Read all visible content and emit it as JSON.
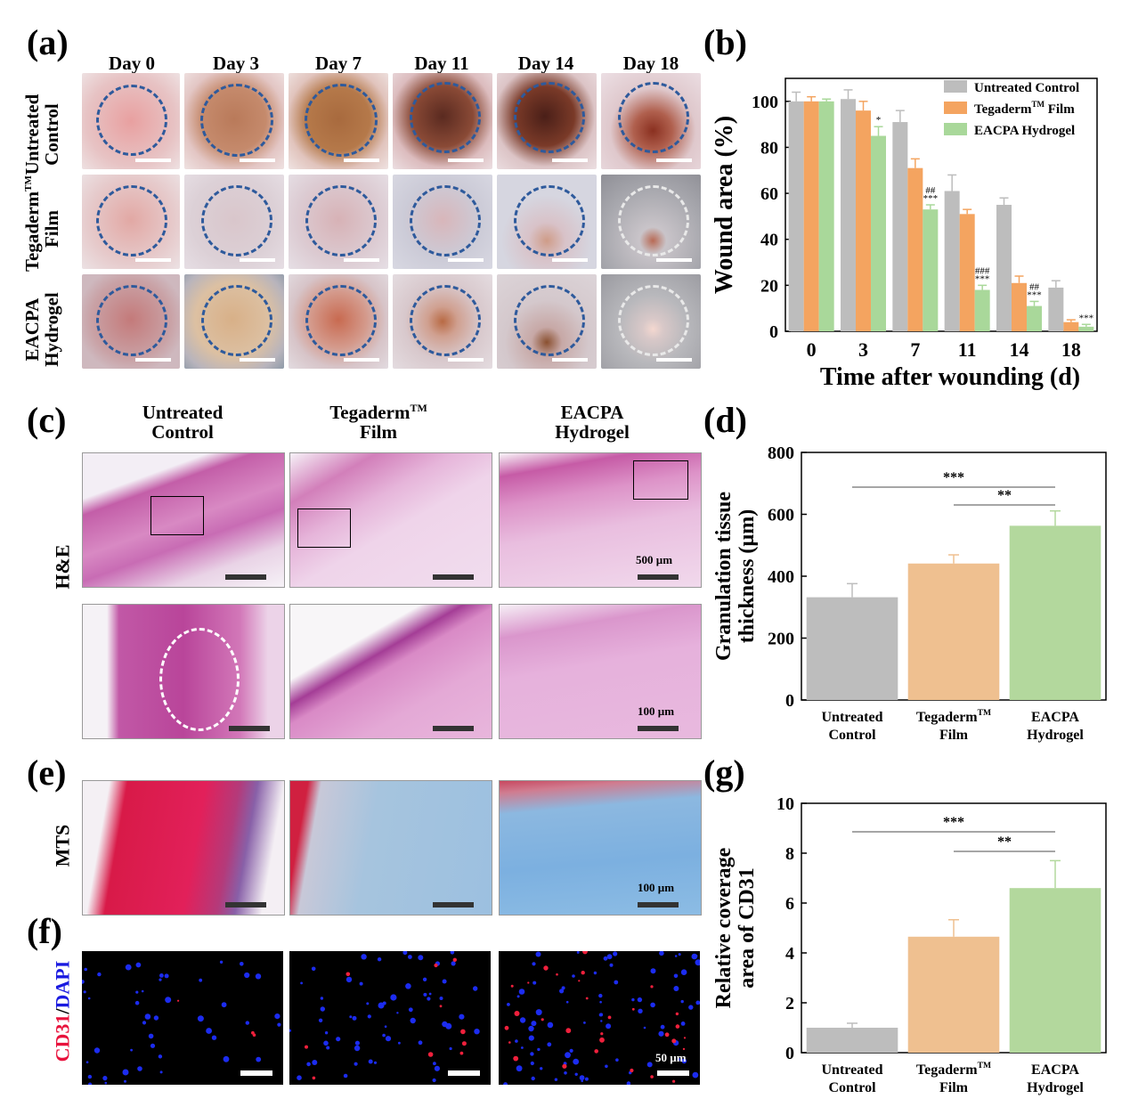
{
  "panel_labels": [
    "(a)",
    "(b)",
    "(c)",
    "(d)",
    "(e)",
    "(f)",
    "(g)"
  ],
  "panel_a": {
    "days": [
      "Day 0",
      "Day 3",
      "Day 7",
      "Day 11",
      "Day 14",
      "Day 18"
    ],
    "rows": [
      {
        "line1": "Untreated",
        "line2": "Control",
        "sup": ""
      },
      {
        "line1": "Tegaderm",
        "line2": "Film",
        "sup": "TM"
      },
      {
        "line1": "EACPA",
        "line2": "Hydrogel",
        "sup": ""
      }
    ]
  },
  "panel_c": {
    "columns": [
      {
        "line1": "Untreated",
        "line2": "Control",
        "sup": ""
      },
      {
        "line1": "Tegaderm",
        "line2": "Film",
        "sup": "TM"
      },
      {
        "line1": "EACPA",
        "line2": "Hydrogel",
        "sup": ""
      }
    ],
    "row_label": "H&E",
    "scale_top": "500 µm",
    "scale_bottom": "100 µm"
  },
  "panel_e": {
    "row_label": "MTS",
    "scale": "100 µm"
  },
  "panel_f": {
    "row_label_red": "CD31",
    "row_label_sep": "/",
    "row_label_blue": "DAPI",
    "scale": "50 µm"
  },
  "colors": {
    "control": "#bdbdbd",
    "tegaderm": "#f4a460",
    "eacpa": "#a9d89a",
    "tegaderm_light": "#efc090",
    "eacpa_light": "#b3d89d",
    "dash_blue": "#2e5a9c"
  },
  "chart_data": [
    {
      "id": "b",
      "type": "bar",
      "categories": [
        "0",
        "3",
        "7",
        "11",
        "14",
        "18"
      ],
      "xlabel": "Time after wounding (d)",
      "ylabel": "Wound area (%)",
      "ylim": [
        0,
        110
      ],
      "yticks": [
        0,
        20,
        40,
        60,
        80,
        100
      ],
      "legend_position": "top-right",
      "series": [
        {
          "name": "Untreated Control",
          "name_sup": "",
          "values": [
            100,
            101,
            91,
            61,
            55,
            19
          ],
          "errors": [
            4,
            4,
            5,
            7,
            3,
            3
          ]
        },
        {
          "name": "Tegaderm",
          "name_sup": "TM",
          "name_suffix": " Film",
          "values": [
            100,
            96,
            71,
            51,
            21,
            4
          ],
          "errors": [
            2,
            4,
            4,
            2,
            3,
            1
          ]
        },
        {
          "name": "EACPA Hydrogel",
          "name_sup": "",
          "values": [
            100,
            85,
            53,
            18,
            11,
            2
          ],
          "errors": [
            1,
            4,
            2,
            2,
            2,
            1
          ]
        }
      ],
      "annotations": [
        {
          "category": "3",
          "series": 2,
          "lines": [
            "*"
          ]
        },
        {
          "category": "7",
          "series": 2,
          "lines": [
            "##",
            "***"
          ]
        },
        {
          "category": "11",
          "series": 2,
          "lines": [
            "###",
            "***"
          ]
        },
        {
          "category": "14",
          "series": 2,
          "lines": [
            "##",
            "***"
          ]
        },
        {
          "category": "18",
          "series": 2,
          "lines": [
            "***"
          ]
        }
      ]
    },
    {
      "id": "d",
      "type": "bar",
      "categories": [
        {
          "line1": "Untreated",
          "line2": "Control",
          "sup": ""
        },
        {
          "line1": "Tegaderm",
          "line2": "Film",
          "sup": "TM"
        },
        {
          "line1": "EACPA",
          "line2": "Hydrogel",
          "sup": ""
        }
      ],
      "values": [
        332,
        441,
        563
      ],
      "errors": [
        44,
        28,
        48
      ],
      "ylabel_line1": "Granulation tissue",
      "ylabel_line2": "thickness (µm)",
      "ylim": [
        0,
        800
      ],
      "yticks": [
        0,
        200,
        400,
        600,
        800
      ],
      "significance": [
        {
          "from": 0,
          "to": 2,
          "label": "***"
        },
        {
          "from": 1,
          "to": 2,
          "label": "**"
        }
      ]
    },
    {
      "id": "g",
      "type": "bar",
      "categories": [
        {
          "line1": "Untreated",
          "line2": "Control",
          "sup": ""
        },
        {
          "line1": "Tegaderm",
          "line2": "Film",
          "sup": "TM"
        },
        {
          "line1": "EACPA",
          "line2": "Hydrogel",
          "sup": ""
        }
      ],
      "values": [
        1.0,
        4.65,
        6.6
      ],
      "errors": [
        0.18,
        0.68,
        1.1
      ],
      "ylabel_line1": "Relative coverage",
      "ylabel_line2": "area of CD31",
      "ylim": [
        0,
        10
      ],
      "yticks": [
        0,
        2,
        4,
        6,
        8,
        10
      ],
      "significance": [
        {
          "from": 0,
          "to": 2,
          "label": "***"
        },
        {
          "from": 1,
          "to": 2,
          "label": "**"
        }
      ]
    }
  ]
}
